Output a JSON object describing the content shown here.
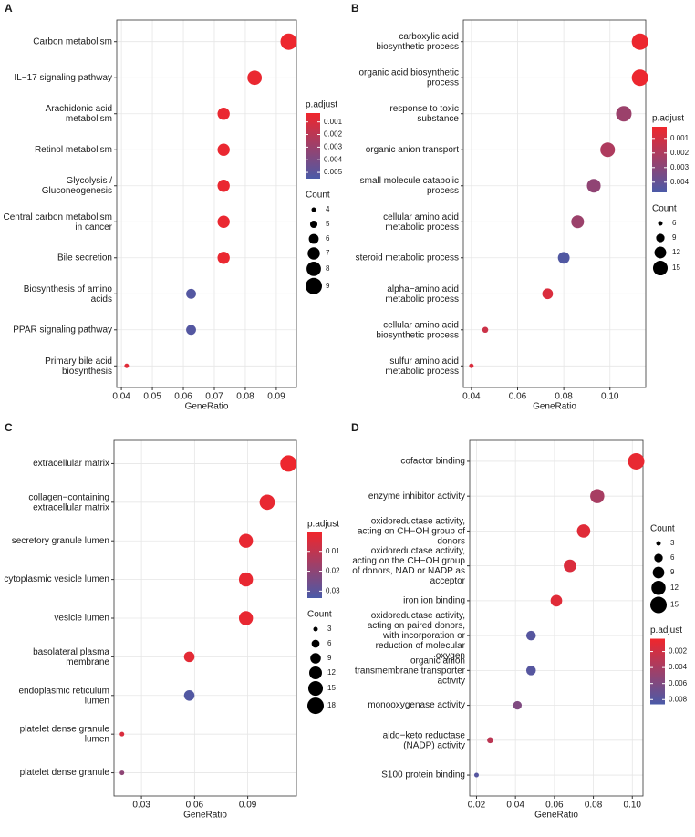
{
  "chart_data": [
    {
      "type": "dot",
      "panel": "A",
      "xlabel": "GeneRatio",
      "categories": [
        "Carbon metabolism",
        "IL−17 signaling pathway",
        "Arachidonic acid\nmetabolism",
        "Retinol metabolism",
        "Glycolysis /\nGluconeogenesis",
        "Central carbon metabolism\nin cancer",
        "Bile secretion",
        "Biosynthesis of amino\nacids",
        "PPAR signaling pathway",
        "Primary bile acid\nbiosynthesis"
      ],
      "values": [
        0.094,
        0.083,
        0.073,
        0.073,
        0.073,
        0.073,
        0.073,
        0.0625,
        0.0625,
        0.0417
      ],
      "count": [
        9,
        8,
        7,
        7,
        7,
        7,
        7,
        6,
        6,
        4
      ],
      "p_adjust": [
        0.0004,
        0.0005,
        0.0005,
        0.0005,
        0.0005,
        0.0005,
        0.0005,
        0.0052,
        0.0052,
        0.0008
      ],
      "xlim": [
        0.0385,
        0.0965
      ],
      "xticks": [
        0.04,
        0.05,
        0.06,
        0.07,
        0.08,
        0.09
      ],
      "color_legend_title": "p.adjust",
      "color_low": "#f0262c",
      "color_high": "#4a5aa8",
      "color_lim": [
        0.0003,
        0.0055
      ],
      "color_ticks": [
        0.001,
        0.002,
        0.003,
        0.004,
        0.005
      ],
      "size_legend_title": "Count",
      "size_ticks": [
        4,
        5,
        6,
        7,
        8,
        9
      ],
      "grid": true
    },
    {
      "type": "dot",
      "panel": "B",
      "xlabel": "GeneRatio",
      "categories": [
        "carboxylic acid\nbiosynthetic process",
        "organic acid biosynthetic\nprocess",
        "response to toxic\nsubstance",
        "organic anion transport",
        "small molecule catabolic\nprocess",
        "cellular amino acid\nmetabolic process",
        "steroid metabolic process",
        "alpha−amino acid\nmetabolic process",
        "cellular amino acid\nbiosynthetic process",
        "sulfur amino acid\nmetabolic process"
      ],
      "values": [
        0.113,
        0.113,
        0.106,
        0.099,
        0.093,
        0.086,
        0.08,
        0.073,
        0.046,
        0.04
      ],
      "count": [
        17,
        17,
        16,
        15,
        14,
        13,
        12,
        11,
        7,
        6
      ],
      "p_adjust": [
        0.0003,
        0.0003,
        0.0025,
        0.002,
        0.0028,
        0.0025,
        0.0045,
        0.0008,
        0.0012,
        0.0008
      ],
      "xlim": [
        0.0365,
        0.1155
      ],
      "xticks": [
        0.04,
        0.06,
        0.08,
        {
          "value": 0.1,
          "label": "0.10"
        }
      ],
      "color_legend_title": "p.adjust",
      "color_low": "#f0262c",
      "color_high": "#4a5aa8",
      "color_lim": [
        0.0002,
        0.0047
      ],
      "color_ticks": [
        0.001,
        0.002,
        0.003,
        0.004
      ],
      "size_legend_title": "Count",
      "size_ticks": [
        6,
        9,
        12,
        15
      ],
      "grid": true
    },
    {
      "type": "dot",
      "panel": "C",
      "xlabel": "GeneRatio",
      "categories": [
        "extracellular matrix",
        "collagen−containing\nextracellular matrix",
        "secretory granule lumen",
        "cytoplasmic vesicle lumen",
        "vesicle lumen",
        "basolateral plasma\nmembrane",
        "endoplasmic reticulum\nlumen",
        "platelet dense granule\nlumen",
        "platelet dense granule"
      ],
      "values": [
        0.113,
        0.101,
        0.089,
        0.089,
        0.089,
        0.057,
        0.057,
        0.019,
        0.019
      ],
      "count": [
        18,
        16,
        14,
        14,
        14,
        9,
        9,
        3,
        3
      ],
      "p_adjust": [
        0.001,
        0.002,
        0.002,
        0.002,
        0.002,
        0.003,
        0.032,
        0.005,
        0.02
      ],
      "xlim": [
        0.0145,
        0.1175
      ],
      "xticks": [
        0.03,
        0.06,
        0.09
      ],
      "color_legend_title": "p.adjust",
      "color_low": "#f0262c",
      "color_high": "#4a5aa8",
      "color_lim": [
        0.0005,
        0.0335
      ],
      "color_ticks": [
        0.01,
        0.02,
        0.03
      ],
      "size_legend_title": "Count",
      "size_ticks": [
        3,
        6,
        9,
        12,
        15,
        18
      ],
      "grid": true
    },
    {
      "type": "dot",
      "panel": "D",
      "xlabel": "GeneRatio",
      "categories": [
        "cofactor binding",
        "enzyme inhibitor activity",
        "oxidoreductase activity,\nacting on CH−OH group of\ndonors",
        "oxidoreductase activity,\nacting on the CH−OH group\nof donors, NAD or NADP as\nacceptor",
        "iron ion binding",
        "oxidoreductase activity,\nacting on paired donors,\nwith incorporation or\nreduction of molecular\noxygen",
        "organic anion\ntransmembrane transporter\nactivity",
        "monooxygenase activity",
        "aldo−keto reductase\n(NADP) activity",
        "S100 protein binding"
      ],
      "values": [
        0.102,
        0.082,
        0.075,
        0.068,
        0.061,
        0.048,
        0.048,
        0.041,
        0.027,
        0.02
      ],
      "count": [
        15,
        12,
        11,
        10,
        9,
        7,
        7,
        6,
        4,
        3
      ],
      "p_adjust": [
        0.0008,
        0.004,
        0.0012,
        0.0015,
        0.0012,
        0.008,
        0.008,
        0.006,
        0.003,
        0.008
      ],
      "xlim": [
        0.0165,
        0.1055
      ],
      "xticks": [
        0.02,
        0.04,
        0.06,
        0.08,
        {
          "value": 0.1,
          "label": "0.10"
        }
      ],
      "color_legend_title": "p.adjust",
      "color_low": "#f0262c",
      "color_high": "#4a5aa8",
      "color_lim": [
        0.0004,
        0.0086
      ],
      "color_ticks": [
        0.002,
        0.004,
        0.006,
        0.008
      ],
      "size_legend_title": "Count",
      "size_ticks": [
        3,
        6,
        9,
        12,
        15
      ],
      "grid": true
    }
  ]
}
